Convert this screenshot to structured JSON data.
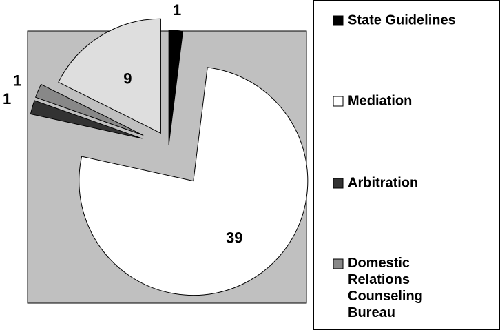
{
  "chart_data": {
    "type": "pie",
    "categories": [
      "State Guidelines",
      "Mediation",
      "Arbitration",
      "Domestic Relations Counseling Bureau",
      null
    ],
    "values": [
      1,
      39,
      1,
      1,
      9
    ],
    "colors": [
      "#000000",
      "#ffffff",
      "#333333",
      "#888888",
      "#dedede"
    ],
    "legend": "right"
  }
}
